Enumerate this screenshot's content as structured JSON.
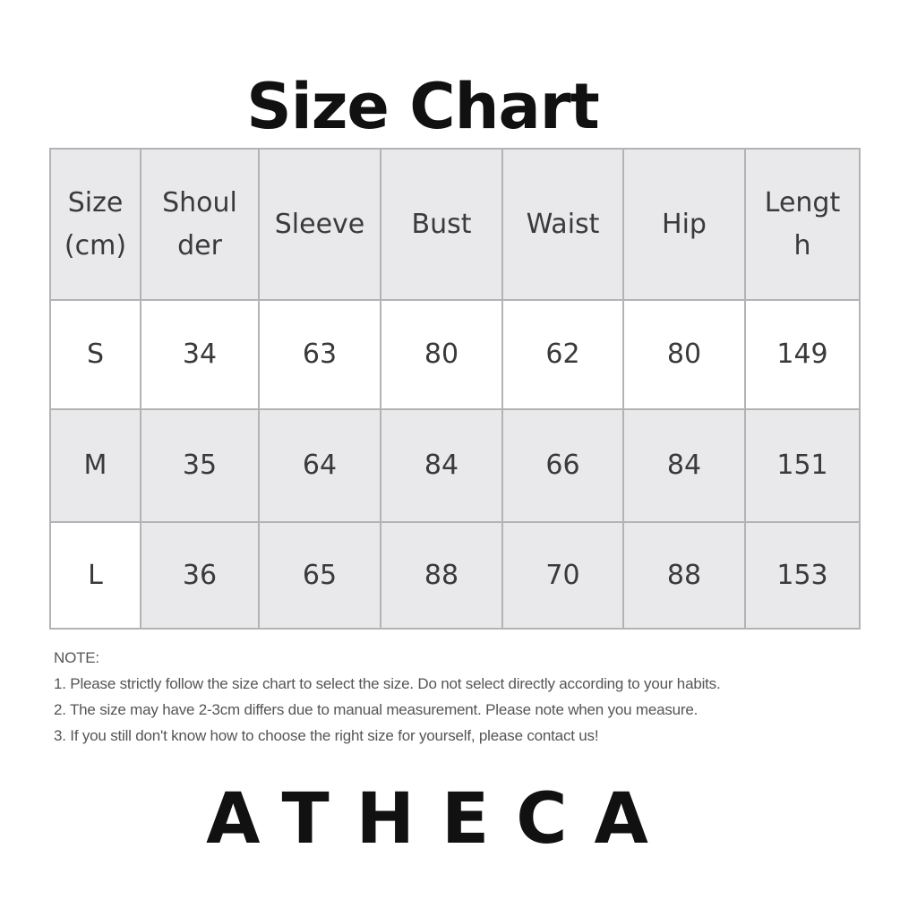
{
  "title": "Size Chart",
  "table": {
    "headers": [
      "Size (cm)",
      "Shoulder",
      "Sleeve",
      "Bust",
      "Waist",
      "Hip",
      "Length"
    ],
    "rows": [
      [
        "S",
        "34",
        "63",
        "80",
        "62",
        "80",
        "149"
      ],
      [
        "M",
        "35",
        "64",
        "84",
        "66",
        "84",
        "151"
      ],
      [
        "L",
        "36",
        "65",
        "88",
        "70",
        "88",
        "153"
      ]
    ]
  },
  "notes": {
    "heading": "NOTE:",
    "items": [
      "1. Please strictly follow the size chart  to select the size. Do not select directly according to your habits.",
      "2. The size may have 2-3cm differs due to manual measurement. Please note when you measure.",
      "3. If you still don't know how to choose the right size for yourself, please contact us!"
    ]
  },
  "brand": "ATHECA",
  "colors": {
    "header_bg": "#e9e9eb",
    "border": "#b3b3b3",
    "text": "#3a3a3a"
  }
}
